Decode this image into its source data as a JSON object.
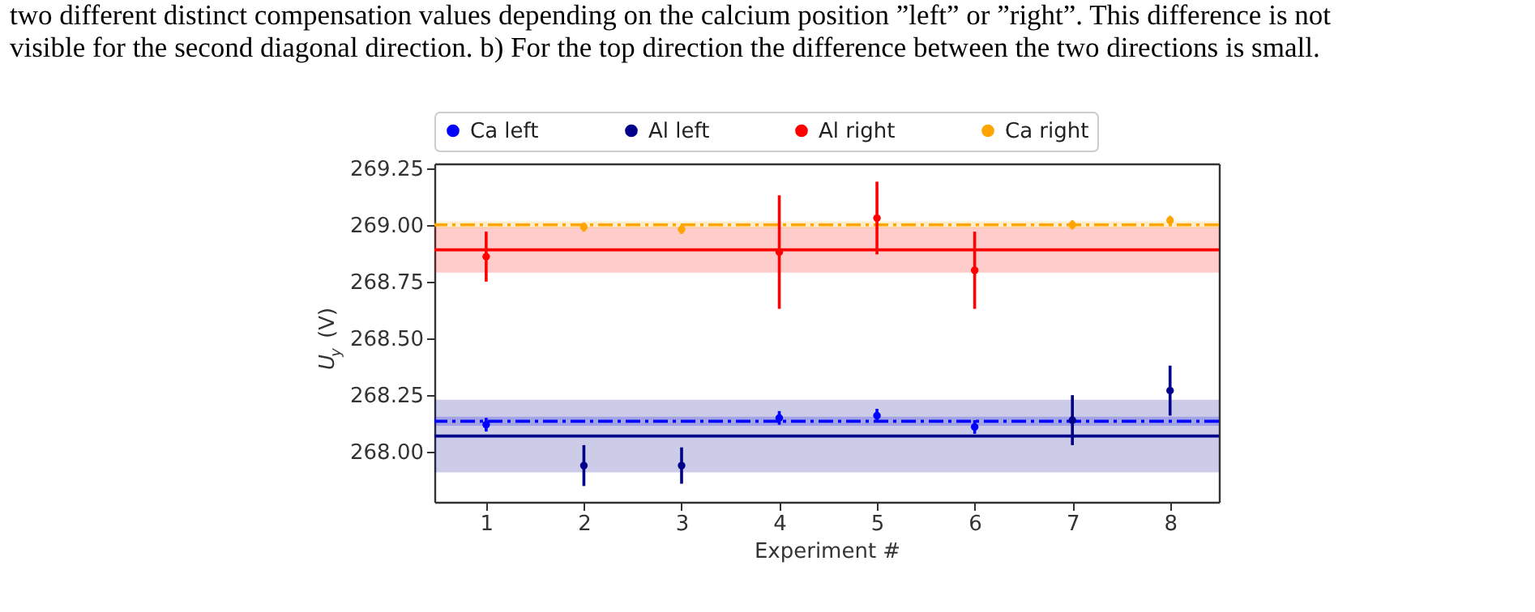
{
  "chart_data": {
    "type": "scatter",
    "annotations": [
      "two different distinct compensation values depending on the calcium position ”left” or ”right”. This difference is not",
      "visible for the second diagonal direction. b) For the top direction the difference between the two directions is small."
    ],
    "xlabel": "Experiment #",
    "ylabel": "U$_{y}$ (V)",
    "series": [
      {
        "name": "Ca left",
        "color": "#0000ff",
        "x": [
          1,
          4,
          5,
          6
        ],
        "values": [
          268.12,
          268.15,
          268.16,
          268.11
        ],
        "errors": [
          0.03,
          0.03,
          0.03,
          0.03
        ]
      },
      {
        "name": "Al left",
        "color": "#00008b",
        "x": [
          2,
          3,
          7,
          8
        ],
        "values": [
          267.94,
          267.94,
          268.14,
          268.27
        ],
        "errors": [
          0.09,
          0.08,
          0.11,
          0.11
        ]
      },
      {
        "name": "Al right",
        "color": "#ff0000",
        "x": [
          1,
          4,
          5,
          6
        ],
        "values": [
          268.86,
          268.88,
          269.03,
          268.8
        ],
        "errors": [
          0.11,
          0.25,
          0.16,
          0.17
        ]
      },
      {
        "name": "Ca right",
        "color": "#ffa500",
        "x": [
          2,
          3,
          7,
          8
        ],
        "values": [
          268.99,
          268.98,
          269.0,
          269.02
        ],
        "errors": [
          0.02,
          0.02,
          0.02,
          0.02
        ]
      }
    ],
    "ref_lines": [
      {
        "axis": "y",
        "value": 268.135,
        "color": "#0000ff",
        "line_style": "dashdot"
      },
      {
        "axis": "y",
        "value": 268.07,
        "color": "#00008b",
        "line_style": "solid"
      },
      {
        "axis": "y",
        "value": 268.89,
        "color": "#ff0000",
        "line_style": "solid"
      },
      {
        "axis": "y",
        "value": 269.0,
        "color": "#ffa500",
        "line_style": "dashdot"
      }
    ],
    "bands": [
      {
        "axis": "y",
        "from": 268.115,
        "to": 268.155,
        "color": "#0000ff"
      },
      {
        "axis": "y",
        "from": 267.91,
        "to": 268.23,
        "color": "#00008b"
      },
      {
        "axis": "y",
        "from": 268.79,
        "to": 268.99,
        "color": "#ff0000"
      },
      {
        "axis": "y",
        "from": 268.985,
        "to": 269.015,
        "color": "#ffa500"
      }
    ],
    "xlim": [
      0.47,
      8.5
    ],
    "xticks": [
      1,
      2,
      3,
      4,
      5,
      6,
      7,
      8
    ],
    "ylim": [
      267.78,
      269.27
    ],
    "yticks": [
      {
        "value": 268,
        "label": "268.00"
      },
      {
        "value": 268.25,
        "label": "268.25"
      },
      {
        "value": 268.5,
        "label": "268.50"
      },
      {
        "value": 268.75,
        "label": "268.75"
      },
      {
        "value": 269,
        "label": "269.00"
      },
      {
        "value": 269.25,
        "label": "269.25"
      }
    ],
    "marker": "circle",
    "grid": false,
    "legend": "top"
  }
}
